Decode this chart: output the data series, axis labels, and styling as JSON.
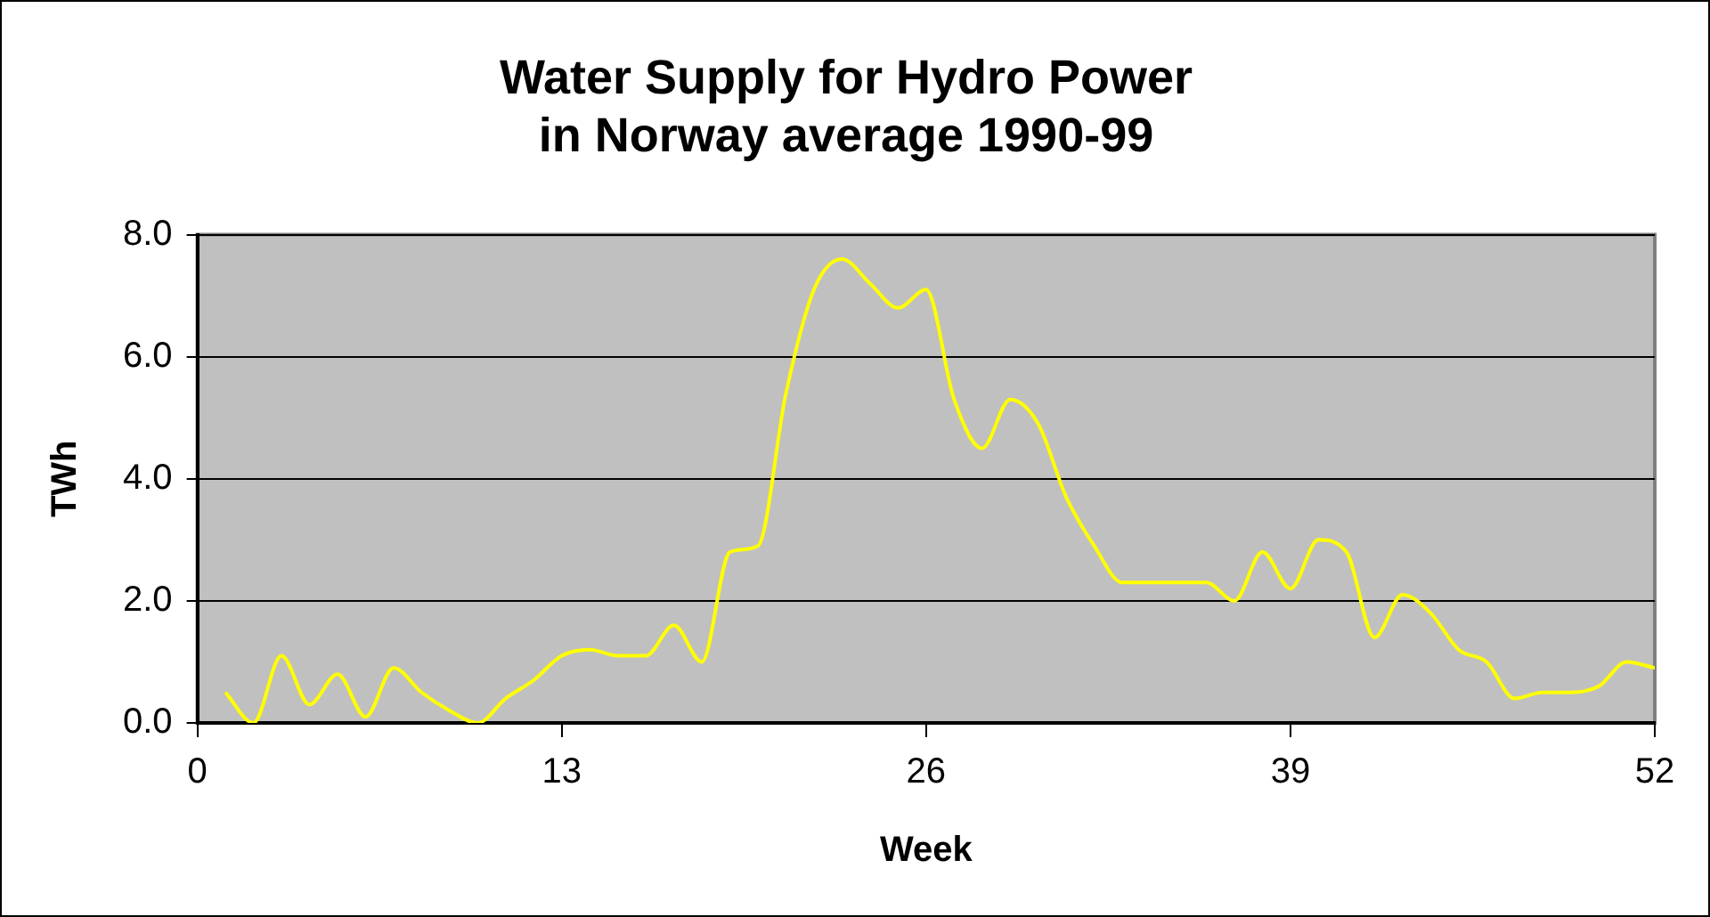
{
  "chart_data": {
    "type": "line",
    "title": "Water Supply for Hydro Power\nin Norway average 1990-99",
    "xlabel": "Week",
    "ylabel": "TWh",
    "x": [
      1,
      2,
      3,
      4,
      5,
      6,
      7,
      8,
      9,
      10,
      11,
      12,
      13,
      14,
      15,
      16,
      17,
      18,
      19,
      20,
      21,
      22,
      23,
      24,
      25,
      26,
      27,
      28,
      29,
      30,
      31,
      32,
      33,
      34,
      35,
      36,
      37,
      38,
      39,
      40,
      41,
      42,
      43,
      44,
      45,
      46,
      47,
      48,
      49,
      50,
      51,
      52
    ],
    "series": [
      {
        "color": "#ffff00",
        "values": [
          0.5,
          0.0,
          1.1,
          0.3,
          0.8,
          0.1,
          0.9,
          0.5,
          0.2,
          0.0,
          0.4,
          0.7,
          1.1,
          1.2,
          1.1,
          1.1,
          1.6,
          1.0,
          2.8,
          2.9,
          5.4,
          7.1,
          7.6,
          7.2,
          6.8,
          7.1,
          5.3,
          4.5,
          5.3,
          4.9,
          3.7,
          2.9,
          2.3,
          2.3,
          2.3,
          2.3,
          2.0,
          2.8,
          2.2,
          3.0,
          2.8,
          1.4,
          2.1,
          1.8,
          1.2,
          1.0,
          0.4,
          0.5,
          0.5,
          0.6,
          1.0,
          0.9
        ]
      }
    ],
    "xlim": [
      0,
      52
    ],
    "xticks": [
      0,
      13,
      26,
      39,
      52
    ],
    "ylim": [
      0,
      8
    ],
    "yticks": [
      {
        "value": 0,
        "label": "0.0"
      },
      {
        "value": 2,
        "label": "2.0"
      },
      {
        "value": 4,
        "label": "4.0"
      },
      {
        "value": 6,
        "label": "6.0"
      },
      {
        "value": 8,
        "label": "8.0"
      }
    ],
    "grid": "y",
    "marker": "none",
    "line_style": "solid"
  }
}
